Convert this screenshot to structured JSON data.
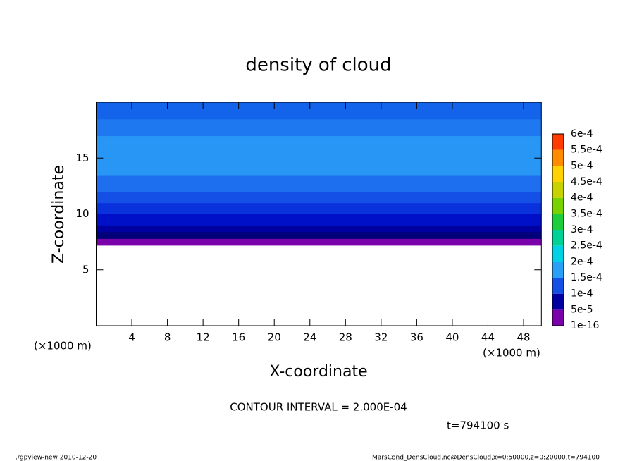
{
  "chart_data": {
    "type": "contour",
    "title": "density of cloud",
    "x_label": "X-coordinate",
    "y_label": "Z-coordinate",
    "x_unit_left": "(×1000 m)",
    "x_unit_right": "(×1000 m)",
    "xlim": [
      0,
      50
    ],
    "ylim": [
      0,
      20
    ],
    "xticks": [
      4,
      8,
      12,
      16,
      20,
      24,
      28,
      32,
      36,
      40,
      44,
      48
    ],
    "yticks": [
      5,
      10,
      15
    ],
    "z_edges": [
      7.2,
      7.8,
      8.4,
      9.0,
      10.0,
      11.0,
      12.0,
      13.5,
      17.0,
      18.5,
      20
    ],
    "values": [
      2.5e-05,
      5.5e-05,
      6.5e-05,
      7.5e-05,
      8.5e-05,
      0.0001,
      0.00012,
      0.000135,
      0.00012,
      0.000105
    ],
    "colors": [
      "#7a00aa",
      "#000078",
      "#0000a0",
      "#0010c8",
      "#0a32dc",
      "#1450e6",
      "#1e6ef0",
      "#2896f5",
      "#1e78f0",
      "#1464eb"
    ],
    "colorbar": {
      "levels": [
        {
          "value": 1e-16,
          "label": "1e-16"
        },
        {
          "value": 5e-05,
          "label": "5e-5"
        },
        {
          "value": 0.0001,
          "label": "1e-4"
        },
        {
          "value": 0.00015,
          "label": "1.5e-4"
        },
        {
          "value": 0.0002,
          "label": "2e-4"
        },
        {
          "value": 0.00025,
          "label": "2.5e-4"
        },
        {
          "value": 0.0003,
          "label": "3e-4"
        },
        {
          "value": 0.00035,
          "label": "3.5e-4"
        },
        {
          "value": 0.0004,
          "label": "4e-4"
        },
        {
          "value": 0.00045,
          "label": "4.5e-4"
        },
        {
          "value": 0.0005,
          "label": "5e-4"
        },
        {
          "value": 0.00055,
          "label": "5.5e-4"
        },
        {
          "value": 0.0006,
          "label": "6e-4"
        }
      ],
      "colors": [
        "#7a00aa",
        "#0000a0",
        "#1450e6",
        "#28a0f5",
        "#00d2e6",
        "#00d296",
        "#1ecd3c",
        "#78d200",
        "#c8d200",
        "#ffd200",
        "#ff8c00",
        "#ff3c00",
        "#ff8c8c"
      ]
    },
    "contour_interval": "CONTOUR INTERVAL = 2.000E-04",
    "time_label": "t=794100 s",
    "footer_left": "./gpview-new  2010-12-20",
    "footer_right": "MarsCond_DensCloud.nc@DensCloud,x=0:50000,z=0:20000,t=794100"
  }
}
